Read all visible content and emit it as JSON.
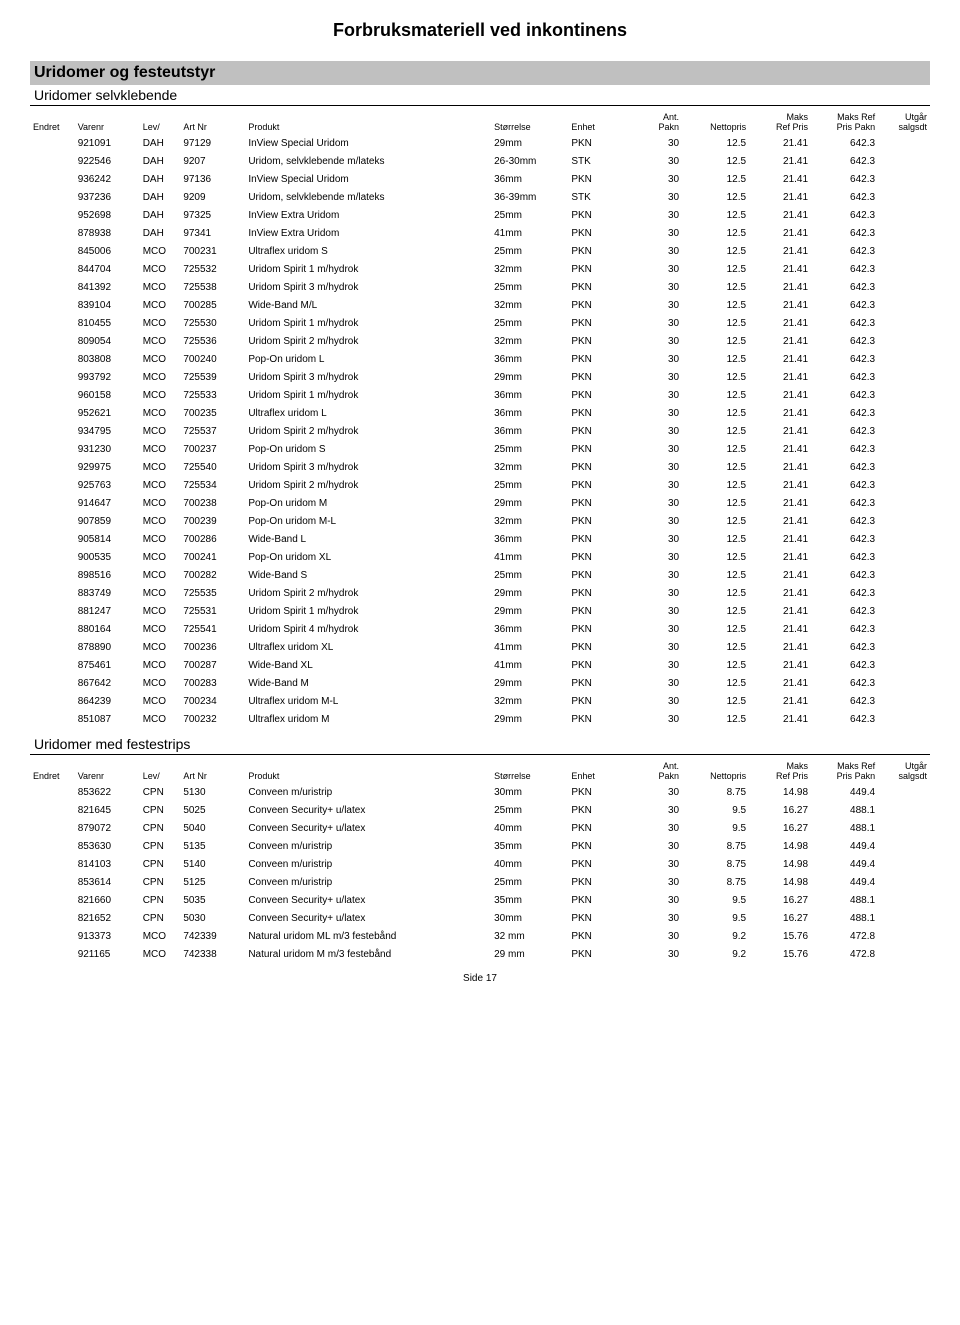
{
  "page_title": "Forbruksmateriell ved inkontinens",
  "footer": "Side 17",
  "sections": [
    {
      "title": "Uridomer og festeutstyr",
      "subsections": [
        {
          "title": "Uridomer selvklebende",
          "columns": [
            "Endret",
            "Varenr",
            "Lev/",
            "Art Nr",
            "Produkt",
            "Størrelse",
            "Enhet",
            "Ant. Pakn",
            "Nettopris",
            "Maks Ref Pris",
            "Maks Ref Pris Pakn",
            "Utgår salgsdt"
          ],
          "rows": [
            [
              "",
              "921091",
              "DAH",
              "97129",
              "InView Special Uridom",
              "29mm",
              "PKN",
              "30",
              "12.5",
              "21.41",
              "642.3",
              ""
            ],
            [
              "",
              "922546",
              "DAH",
              "9207",
              "Uridom, selvklebende m/lateks",
              "26-30mm",
              "STK",
              "30",
              "12.5",
              "21.41",
              "642.3",
              ""
            ],
            [
              "",
              "936242",
              "DAH",
              "97136",
              "InView Special Uridom",
              "36mm",
              "PKN",
              "30",
              "12.5",
              "21.41",
              "642.3",
              ""
            ],
            [
              "",
              "937236",
              "DAH",
              "9209",
              "Uridom, selvklebende m/lateks",
              "36-39mm",
              "STK",
              "30",
              "12.5",
              "21.41",
              "642.3",
              ""
            ],
            [
              "",
              "952698",
              "DAH",
              "97325",
              "InView Extra Uridom",
              "25mm",
              "PKN",
              "30",
              "12.5",
              "21.41",
              "642.3",
              ""
            ],
            [
              "",
              "878938",
              "DAH",
              "97341",
              "InView Extra Uridom",
              "41mm",
              "PKN",
              "30",
              "12.5",
              "21.41",
              "642.3",
              ""
            ],
            [
              "",
              "845006",
              "MCO",
              "700231",
              "Ultraflex uridom S",
              "25mm",
              "PKN",
              "30",
              "12.5",
              "21.41",
              "642.3",
              ""
            ],
            [
              "",
              "844704",
              "MCO",
              "725532",
              "Uridom Spirit 1 m/hydrok",
              "32mm",
              "PKN",
              "30",
              "12.5",
              "21.41",
              "642.3",
              ""
            ],
            [
              "",
              "841392",
              "MCO",
              "725538",
              "Uridom Spirit 3 m/hydrok",
              "25mm",
              "PKN",
              "30",
              "12.5",
              "21.41",
              "642.3",
              ""
            ],
            [
              "",
              "839104",
              "MCO",
              "700285",
              "Wide-Band M/L",
              "32mm",
              "PKN",
              "30",
              "12.5",
              "21.41",
              "642.3",
              ""
            ],
            [
              "",
              "810455",
              "MCO",
              "725530",
              "Uridom Spirit 1 m/hydrok",
              "25mm",
              "PKN",
              "30",
              "12.5",
              "21.41",
              "642.3",
              ""
            ],
            [
              "",
              "809054",
              "MCO",
              "725536",
              "Uridom Spirit 2 m/hydrok",
              "32mm",
              "PKN",
              "30",
              "12.5",
              "21.41",
              "642.3",
              ""
            ],
            [
              "",
              "803808",
              "MCO",
              "700240",
              "Pop-On uridom L",
              "36mm",
              "PKN",
              "30",
              "12.5",
              "21.41",
              "642.3",
              ""
            ],
            [
              "",
              "993792",
              "MCO",
              "725539",
              "Uridom Spirit 3 m/hydrok",
              "29mm",
              "PKN",
              "30",
              "12.5",
              "21.41",
              "642.3",
              ""
            ],
            [
              "",
              "960158",
              "MCO",
              "725533",
              "Uridom Spirit 1 m/hydrok",
              "36mm",
              "PKN",
              "30",
              "12.5",
              "21.41",
              "642.3",
              ""
            ],
            [
              "",
              "952621",
              "MCO",
              "700235",
              "Ultraflex uridom L",
              "36mm",
              "PKN",
              "30",
              "12.5",
              "21.41",
              "642.3",
              ""
            ],
            [
              "",
              "934795",
              "MCO",
              "725537",
              "Uridom Spirit 2 m/hydrok",
              "36mm",
              "PKN",
              "30",
              "12.5",
              "21.41",
              "642.3",
              ""
            ],
            [
              "",
              "931230",
              "MCO",
              "700237",
              "Pop-On uridom S",
              "25mm",
              "PKN",
              "30",
              "12.5",
              "21.41",
              "642.3",
              ""
            ],
            [
              "",
              "929975",
              "MCO",
              "725540",
              "Uridom Spirit 3 m/hydrok",
              "32mm",
              "PKN",
              "30",
              "12.5",
              "21.41",
              "642.3",
              ""
            ],
            [
              "",
              "925763",
              "MCO",
              "725534",
              "Uridom Spirit 2 m/hydrok",
              "25mm",
              "PKN",
              "30",
              "12.5",
              "21.41",
              "642.3",
              ""
            ],
            [
              "",
              "914647",
              "MCO",
              "700238",
              "Pop-On uridom M",
              "29mm",
              "PKN",
              "30",
              "12.5",
              "21.41",
              "642.3",
              ""
            ],
            [
              "",
              "907859",
              "MCO",
              "700239",
              "Pop-On uridom M-L",
              "32mm",
              "PKN",
              "30",
              "12.5",
              "21.41",
              "642.3",
              ""
            ],
            [
              "",
              "905814",
              "MCO",
              "700286",
              "Wide-Band L",
              "36mm",
              "PKN",
              "30",
              "12.5",
              "21.41",
              "642.3",
              ""
            ],
            [
              "",
              "900535",
              "MCO",
              "700241",
              "Pop-On uridom XL",
              "41mm",
              "PKN",
              "30",
              "12.5",
              "21.41",
              "642.3",
              ""
            ],
            [
              "",
              "898516",
              "MCO",
              "700282",
              "Wide-Band S",
              "25mm",
              "PKN",
              "30",
              "12.5",
              "21.41",
              "642.3",
              ""
            ],
            [
              "",
              "883749",
              "MCO",
              "725535",
              "Uridom Spirit 2 m/hydrok",
              "29mm",
              "PKN",
              "30",
              "12.5",
              "21.41",
              "642.3",
              ""
            ],
            [
              "",
              "881247",
              "MCO",
              "725531",
              "Uridom Spirit 1 m/hydrok",
              "29mm",
              "PKN",
              "30",
              "12.5",
              "21.41",
              "642.3",
              ""
            ],
            [
              "",
              "880164",
              "MCO",
              "725541",
              "Uridom Spirit 4 m/hydrok",
              "36mm",
              "PKN",
              "30",
              "12.5",
              "21.41",
              "642.3",
              ""
            ],
            [
              "",
              "878890",
              "MCO",
              "700236",
              "Ultraflex uridom XL",
              "41mm",
              "PKN",
              "30",
              "12.5",
              "21.41",
              "642.3",
              ""
            ],
            [
              "",
              "875461",
              "MCO",
              "700287",
              "Wide-Band XL",
              "41mm",
              "PKN",
              "30",
              "12.5",
              "21.41",
              "642.3",
              ""
            ],
            [
              "",
              "867642",
              "MCO",
              "700283",
              "Wide-Band M",
              "29mm",
              "PKN",
              "30",
              "12.5",
              "21.41",
              "642.3",
              ""
            ],
            [
              "",
              "864239",
              "MCO",
              "700234",
              "Ultraflex uridom M-L",
              "32mm",
              "PKN",
              "30",
              "12.5",
              "21.41",
              "642.3",
              ""
            ],
            [
              "",
              "851087",
              "MCO",
              "700232",
              "Ultraflex uridom M",
              "29mm",
              "PKN",
              "30",
              "12.5",
              "21.41",
              "642.3",
              ""
            ]
          ]
        },
        {
          "title": "Uridomer med festestrips",
          "columns": [
            "Endret",
            "Varenr",
            "Lev/",
            "Art Nr",
            "Produkt",
            "Størrelse",
            "Enhet",
            "Ant. Pakn",
            "Nettopris",
            "Maks Ref Pris",
            "Maks Ref Pris Pakn",
            "Utgår salgsdt"
          ],
          "rows": [
            [
              "",
              "853622",
              "CPN",
              "5130",
              "Conveen m/uristrip",
              "30mm",
              "PKN",
              "30",
              "8.75",
              "14.98",
              "449.4",
              ""
            ],
            [
              "",
              "821645",
              "CPN",
              "5025",
              "Conveen Security+ u/latex",
              "25mm",
              "PKN",
              "30",
              "9.5",
              "16.27",
              "488.1",
              ""
            ],
            [
              "",
              "879072",
              "CPN",
              "5040",
              "Conveen Security+ u/latex",
              "40mm",
              "PKN",
              "30",
              "9.5",
              "16.27",
              "488.1",
              ""
            ],
            [
              "",
              "853630",
              "CPN",
              "5135",
              "Conveen m/uristrip",
              "35mm",
              "PKN",
              "30",
              "8.75",
              "14.98",
              "449.4",
              ""
            ],
            [
              "",
              "814103",
              "CPN",
              "5140",
              "Conveen m/uristrip",
              "40mm",
              "PKN",
              "30",
              "8.75",
              "14.98",
              "449.4",
              ""
            ],
            [
              "",
              "853614",
              "CPN",
              "5125",
              "Conveen m/uristrip",
              "25mm",
              "PKN",
              "30",
              "8.75",
              "14.98",
              "449.4",
              ""
            ],
            [
              "",
              "821660",
              "CPN",
              "5035",
              "Conveen Security+ u/latex",
              "35mm",
              "PKN",
              "30",
              "9.5",
              "16.27",
              "488.1",
              ""
            ],
            [
              "",
              "821652",
              "CPN",
              "5030",
              "Conveen Security+ u/latex",
              "30mm",
              "PKN",
              "30",
              "9.5",
              "16.27",
              "488.1",
              ""
            ],
            [
              "",
              "913373",
              "MCO",
              "742339",
              "Natural uridom ML m/3 festebånd",
              "32 mm",
              "PKN",
              "30",
              "9.2",
              "15.76",
              "472.8",
              ""
            ],
            [
              "",
              "921165",
              "MCO",
              "742338",
              "Natural uridom M m/3 festebånd",
              "29 mm",
              "PKN",
              "30",
              "9.2",
              "15.76",
              "472.8",
              ""
            ]
          ]
        }
      ]
    }
  ]
}
